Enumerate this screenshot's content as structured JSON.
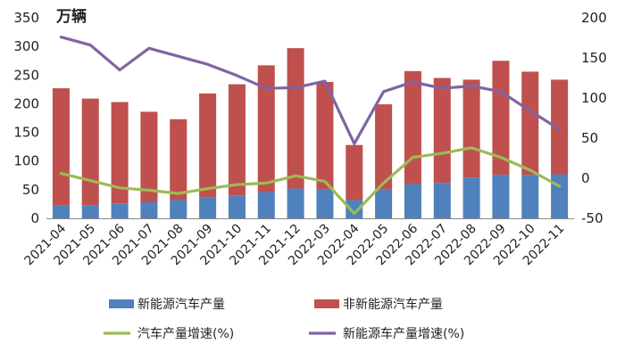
{
  "chart_data": {
    "type": "bar",
    "stacked": true,
    "unit_label": "万辆",
    "categories": [
      "2021-04",
      "2021-05",
      "2021-06",
      "2021-07",
      "2021-08",
      "2021-09",
      "2021-10",
      "2021-11",
      "2021-12",
      "2022-03",
      "2022-04",
      "2022-05",
      "2022-06",
      "2022-07",
      "2022-08",
      "2022-09",
      "2022-10",
      "2022-11"
    ],
    "series": [
      {
        "name": "新能源汽车产量",
        "type": "bar",
        "axis": "left",
        "color": "#4f81bd",
        "values": [
          22,
          23,
          26,
          28,
          32,
          36,
          40,
          46,
          52,
          50,
          32,
          50,
          60,
          62,
          71,
          76,
          76,
          77
        ]
      },
      {
        "name": "非新能源汽车产量",
        "type": "bar",
        "axis": "left",
        "color": "#c0504d",
        "values": [
          205,
          186,
          177,
          158,
          141,
          182,
          194,
          221,
          245,
          188,
          96,
          149,
          197,
          183,
          171,
          199,
          180,
          165
        ]
      },
      {
        "name": "汽车产量增速(%)",
        "type": "line",
        "axis": "right",
        "color": "#9bbb59",
        "values": [
          6,
          -3,
          -12,
          -15,
          -19,
          -13,
          -8,
          -6,
          3,
          -4,
          -44,
          -6,
          26,
          31,
          38,
          26,
          10,
          -10
        ]
      },
      {
        "name": "新能源车产量增速(%)",
        "type": "line",
        "axis": "right",
        "color": "#8064a2",
        "values": [
          176,
          166,
          135,
          162,
          152,
          142,
          128,
          112,
          113,
          121,
          43,
          108,
          120,
          112,
          115,
          108,
          84,
          61
        ]
      }
    ],
    "left_axis": {
      "min": 0,
      "max": 350,
      "step": 50,
      "ticks": [
        "0",
        "50",
        "100",
        "150",
        "200",
        "250",
        "300",
        "350"
      ]
    },
    "right_axis": {
      "min": -50,
      "max": 200,
      "step": 50,
      "ticks": [
        "-50",
        "0",
        "50",
        "100",
        "150",
        "200"
      ]
    },
    "grid": false,
    "legend_position": "bottom"
  }
}
